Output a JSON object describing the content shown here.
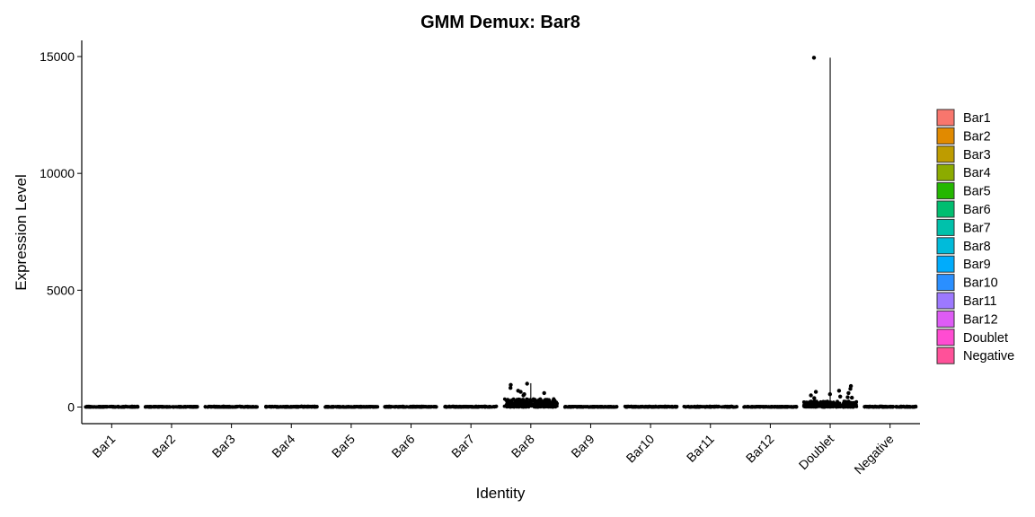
{
  "chart_data": {
    "type": "violin",
    "title": "GMM Demux: Bar8",
    "xlabel": "Identity",
    "ylabel": "Expression Level",
    "ylim": [
      -650,
      15600
    ],
    "yticks": [
      0,
      5000,
      10000,
      15000
    ],
    "ytick_labels": [
      "0",
      "5000",
      "10000",
      "15000"
    ],
    "grid": false,
    "legend_position": "right",
    "categories": [
      "Bar1",
      "Bar2",
      "Bar3",
      "Bar4",
      "Bar5",
      "Bar6",
      "Bar7",
      "Bar8",
      "Bar9",
      "Bar10",
      "Bar11",
      "Bar12",
      "Doublet",
      "Negative"
    ],
    "colors": [
      "#F8766D",
      "#E18A00",
      "#BE9C00",
      "#8CAB00",
      "#24B700",
      "#00BE70",
      "#00C1AB",
      "#00BBDA",
      "#00ACFC",
      "#2A8FFF",
      "#9D79FF",
      "#DE5CF5",
      "#FF4CD2",
      "#FF5199"
    ],
    "series": [
      {
        "name": "Bar1",
        "min": 0,
        "max": 30,
        "outliers": []
      },
      {
        "name": "Bar2",
        "min": 0,
        "max": 25,
        "outliers": []
      },
      {
        "name": "Bar3",
        "min": 0,
        "max": 30,
        "outliers": []
      },
      {
        "name": "Bar4",
        "min": 0,
        "max": 30,
        "outliers": []
      },
      {
        "name": "Bar5",
        "min": 0,
        "max": 25,
        "outliers": []
      },
      {
        "name": "Bar6",
        "min": 0,
        "max": 30,
        "outliers": []
      },
      {
        "name": "Bar7",
        "min": 0,
        "max": 30,
        "outliers": []
      },
      {
        "name": "Bar8",
        "min": 0,
        "max": 1020,
        "typical_max": 350,
        "outliers": [
          1000,
          950,
          820,
          700,
          650,
          600,
          550,
          500
        ]
      },
      {
        "name": "Bar9",
        "min": 0,
        "max": 25,
        "outliers": []
      },
      {
        "name": "Bar10",
        "min": 0,
        "max": 30,
        "outliers": []
      },
      {
        "name": "Bar11",
        "min": 0,
        "max": 30,
        "outliers": []
      },
      {
        "name": "Bar12",
        "min": 0,
        "max": 25,
        "outliers": []
      },
      {
        "name": "Doublet",
        "min": 0,
        "max": 14950,
        "typical_max": 250,
        "outliers": [
          14950,
          900,
          780,
          700,
          650,
          600,
          550,
          500,
          450,
          420,
          400,
          380
        ]
      },
      {
        "name": "Negative",
        "min": 0,
        "max": 30,
        "outliers": []
      }
    ]
  }
}
